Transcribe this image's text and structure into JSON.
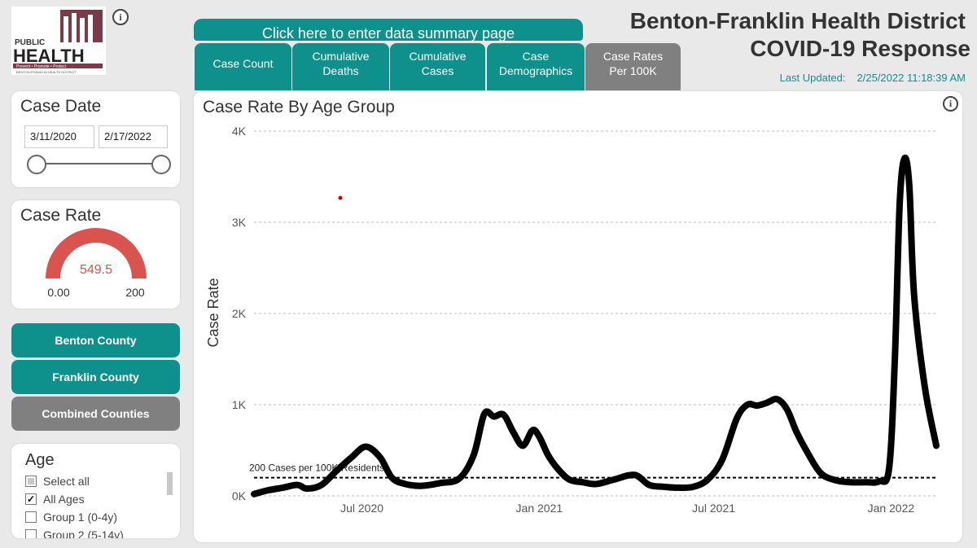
{
  "logo": {
    "line1": "PUBLIC",
    "line2": "HEALTH",
    "tagline": "Prevent • Promote • Protect",
    "subline": "BENTON-FRANKLIN HEALTH DISTRICT"
  },
  "header": {
    "summary_link": "Click here to enter data summary page",
    "title_line1": "Benton-Franklin Health District",
    "title_line2": "COVID-19 Response",
    "updated_label": "Last Updated:",
    "updated_value": "2/25/2022 11:18:39 AM"
  },
  "tabs": [
    {
      "line1": "Case Count",
      "line2": ""
    },
    {
      "line1": "Cumulative",
      "line2": "Deaths"
    },
    {
      "line1": "Cumulative",
      "line2": "Cases"
    },
    {
      "line1": "Case",
      "line2": "Demographics"
    },
    {
      "line1": "Case Rates",
      "line2": "Per 100K"
    }
  ],
  "case_date": {
    "title": "Case Date",
    "start": "3/11/2020",
    "end": "2/17/2022"
  },
  "case_rate": {
    "title": "Case Rate",
    "value": "549.5",
    "min": "0.00",
    "max": "200"
  },
  "county_buttons": {
    "benton": "Benton County",
    "franklin": "Franklin County",
    "combined": "Combined Counties"
  },
  "age_filter": {
    "title": "Age",
    "items": [
      "Select all",
      "All Ages",
      "Group 1 (0-4y)",
      "Group 2 (5-14y)"
    ]
  },
  "colors": {
    "teal": "#0e918c",
    "gray_button": "#808080",
    "gauge_red": "#d9534f"
  },
  "chart_data": {
    "type": "line",
    "title": "Case Rate By Age Group",
    "ylabel": "Case Rate",
    "ylim": [
      0,
      4000
    ],
    "yticks": [
      0,
      1000,
      2000,
      3000,
      4000
    ],
    "ytick_labels": [
      "0K",
      "1K",
      "2K",
      "3K",
      "4K"
    ],
    "xtick_labels": [
      "Jul 2020",
      "Jan 2021",
      "Jul 2021",
      "Jan 2022"
    ],
    "xticks": [
      "2020-07-01",
      "2021-01-01",
      "2021-07-01",
      "2022-01-01"
    ],
    "xlim": [
      "2020-03-11",
      "2022-02-17"
    ],
    "grid": "horizontal dashed",
    "reference_line": {
      "y": 200,
      "label": "200 Cases per 100K Residents"
    },
    "series": [
      {
        "x": [
          "2020-03-11",
          "2020-03-25",
          "2020-04-10",
          "2020-04-25",
          "2020-05-05",
          "2020-05-20",
          "2020-06-05",
          "2020-06-20",
          "2020-07-05",
          "2020-07-20",
          "2020-08-01",
          "2020-08-15",
          "2020-09-01",
          "2020-09-20",
          "2020-10-10",
          "2020-10-25",
          "2020-11-05",
          "2020-11-15",
          "2020-11-25",
          "2020-12-05",
          "2020-12-15",
          "2020-12-25",
          "2021-01-01",
          "2021-01-10",
          "2021-01-20",
          "2021-02-01",
          "2021-02-15",
          "2021-03-01",
          "2021-03-20",
          "2021-04-10",
          "2021-04-25",
          "2021-05-10",
          "2021-05-25",
          "2021-06-10",
          "2021-06-25",
          "2021-07-10",
          "2021-07-25",
          "2021-08-05",
          "2021-08-15",
          "2021-08-25",
          "2021-09-05",
          "2021-09-15",
          "2021-09-25",
          "2021-10-05",
          "2021-10-20",
          "2021-11-05",
          "2021-11-20",
          "2021-12-05",
          "2021-12-20",
          "2021-12-30",
          "2022-01-05",
          "2022-01-10",
          "2022-01-15",
          "2022-01-20",
          "2022-01-25",
          "2022-02-05",
          "2022-02-17"
        ],
        "y": [
          20,
          60,
          90,
          120,
          80,
          120,
          280,
          420,
          540,
          420,
          200,
          130,
          110,
          140,
          190,
          450,
          900,
          870,
          890,
          700,
          550,
          720,
          650,
          450,
          300,
          180,
          150,
          130,
          180,
          230,
          120,
          100,
          90,
          100,
          180,
          400,
          850,
          1000,
          990,
          1020,
          1060,
          950,
          700,
          500,
          250,
          170,
          150,
          150,
          160,
          300,
          1500,
          3200,
          3700,
          3400,
          2200,
          1200,
          550
        ]
      }
    ]
  }
}
